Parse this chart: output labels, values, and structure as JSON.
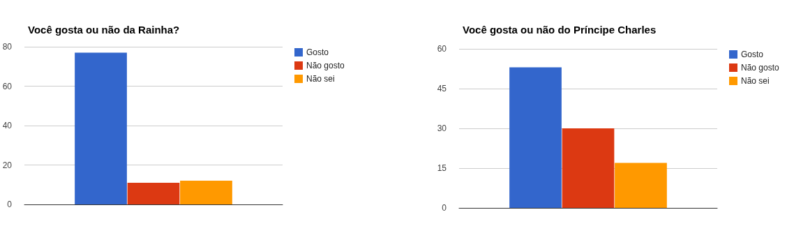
{
  "chart_data": [
    {
      "type": "bar",
      "title": "Você gosta ou não da Rainha?",
      "categories": [
        null
      ],
      "series": [
        {
          "name": "Gosto",
          "color": "#3366cc",
          "values": [
            77
          ]
        },
        {
          "name": "Não gosto",
          "color": "#dc3912",
          "values": [
            11
          ]
        },
        {
          "name": "Não sei",
          "color": "#ff9900",
          "values": [
            12
          ]
        }
      ],
      "ylim": [
        0,
        80
      ],
      "yticks": [
        0,
        20,
        40,
        60,
        80
      ],
      "grid": "y",
      "legend": "top right"
    },
    {
      "type": "bar",
      "title": "Você gosta ou não do Príncipe Charles",
      "categories": [
        null
      ],
      "series": [
        {
          "name": "Gosto",
          "color": "#3366cc",
          "values": [
            53
          ]
        },
        {
          "name": "Não gosto",
          "color": "#dc3912",
          "values": [
            30
          ]
        },
        {
          "name": "Não sei",
          "color": "#ff9900",
          "values": [
            17
          ]
        }
      ],
      "ylim": [
        0,
        60
      ],
      "yticks": [
        0,
        15,
        30,
        45,
        60
      ],
      "grid": "y",
      "legend": "top right"
    }
  ]
}
